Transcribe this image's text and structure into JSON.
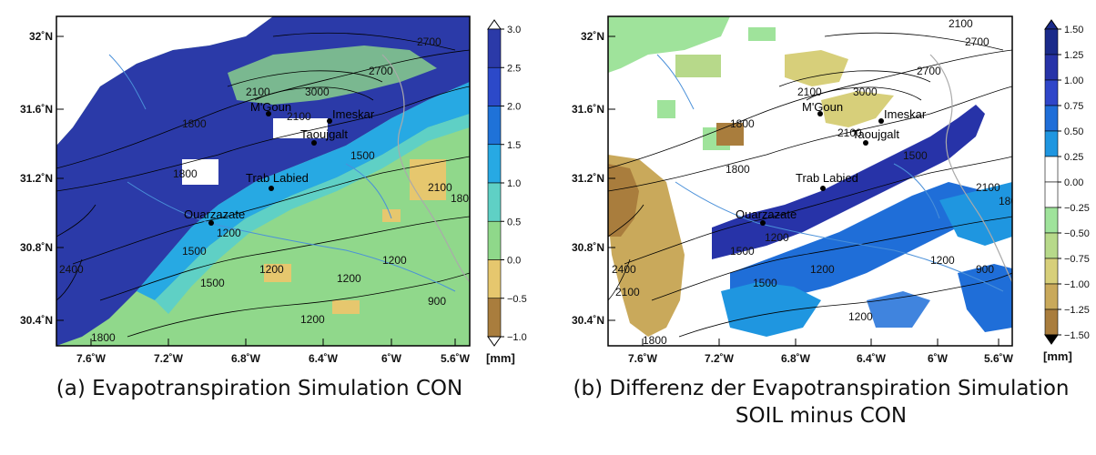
{
  "panels": [
    {
      "caption_line1": "(a) Evapotranspiration Simulation CON",
      "caption_line2": "",
      "colorbar": {
        "ticks": [
          "3.0",
          "2.5",
          "2.0",
          "1.5",
          "1.0",
          "0.5",
          "0.0",
          "−0.5",
          "−1.0"
        ],
        "unit": "[mm]",
        "colors": [
          "#2b3aa8",
          "#2c49c9",
          "#1f72d8",
          "#27a9e3",
          "#5fd0c5",
          "#8fd88a",
          "#e6c76e",
          "#a97d3d"
        ]
      }
    },
    {
      "caption_line1": "(b) Differenz der Evapotranspiration Simulation",
      "caption_line2": "SOIL minus CON",
      "colorbar": {
        "ticks": [
          "1.50",
          "1.25",
          "1.00",
          "0.75",
          "0.50",
          "0.25",
          "0.00",
          "−0.25",
          "−0.50",
          "−0.75",
          "−1.00",
          "−1.25",
          "−1.50"
        ],
        "unit": "[mm]",
        "colors": [
          "#1a2a8a",
          "#2733a8",
          "#2f46c9",
          "#1f6ed8",
          "#1f96e0",
          "#ffffff",
          "#ffffff",
          "#9fe39b",
          "#b7d98a",
          "#d7cf7a",
          "#c9a95b",
          "#a97d3d"
        ]
      }
    }
  ],
  "axes": {
    "lat_labels": [
      "32˚N",
      "31.6˚N",
      "31.2˚N",
      "30.8˚N",
      "30.4˚N"
    ],
    "lon_labels": [
      "7.6˚W",
      "7.2˚W",
      "6.8˚W",
      "6.4˚W",
      "6˚W",
      "5.6˚W"
    ]
  },
  "places": {
    "mgoun": "M'Goun",
    "imeskar": "Imeskar",
    "taoujgalt": "Taoujgalt",
    "trab_labied": "Trab Labied",
    "ouarzazate": "Ouarzazate"
  },
  "contour_labels": [
    "2100",
    "2700",
    "2100",
    "2700",
    "3000",
    "1800",
    "1500",
    "1800",
    "1500",
    "1200",
    "1500",
    "1200",
    "1200",
    "900",
    "2400",
    "2100",
    "1800",
    "1200",
    "1800",
    "2100"
  ]
}
